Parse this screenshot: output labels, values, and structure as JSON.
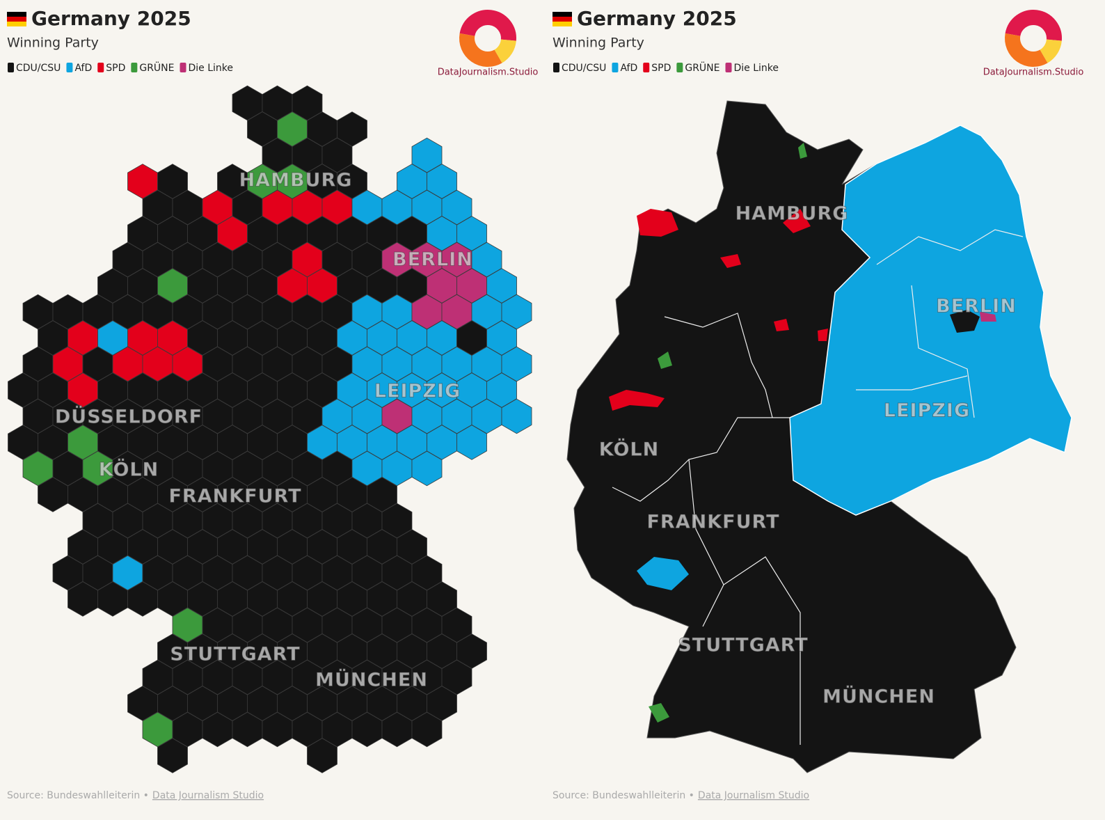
{
  "panels": [
    {
      "title": "Germany 2025",
      "subtitle": "Winning Party",
      "legend": [
        {
          "name": "CDU/CSU",
          "color": "#141414"
        },
        {
          "name": "AfD",
          "color": "#0ea5e0"
        },
        {
          "name": "SPD",
          "color": "#e3001b"
        },
        {
          "name": "GRÜNE",
          "color": "#3c9a3c"
        },
        {
          "name": "Die Linke",
          "color": "#be3075"
        }
      ],
      "logo_text": "DataJournalism.Studio",
      "city_labels": [
        "HAMBURG",
        "BERLIN",
        "LEIPZIG",
        "DÜSSELDORF",
        "KÖLN",
        "FRANKFURT",
        "STUTTGART",
        "MÜNCHEN"
      ],
      "source": "Source: Bundeswahlleiterin •",
      "source_link": "Data Journalism Studio"
    },
    {
      "title": "Germany 2025",
      "subtitle": "Winning Party",
      "legend": [
        {
          "name": "CDU/CSU",
          "color": "#141414"
        },
        {
          "name": "AfD",
          "color": "#0ea5e0"
        },
        {
          "name": "SPD",
          "color": "#e3001b"
        },
        {
          "name": "GRÜNE",
          "color": "#3c9a3c"
        },
        {
          "name": "Die Linke",
          "color": "#be3075"
        }
      ],
      "logo_text": "DataJournalism.Studio",
      "city_labels": [
        "HAMBURG",
        "BERLIN",
        "LEIPZIG",
        "KÖLN",
        "FRANKFURT",
        "STUTTGART",
        "MÜNCHEN"
      ],
      "source": "Source: Bundeswahlleiterin •",
      "source_link": "Data Journalism Studio"
    }
  ]
}
